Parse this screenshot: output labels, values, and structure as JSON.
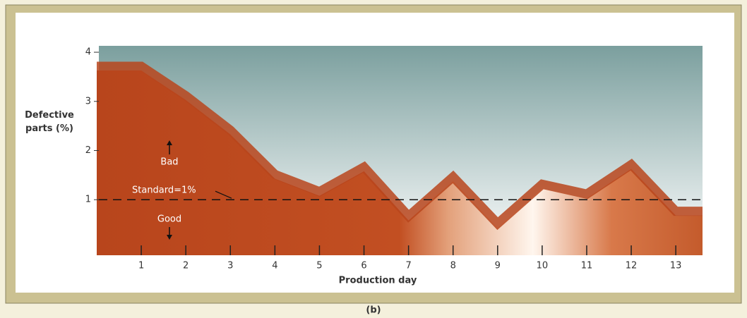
{
  "chart_data": {
    "type": "area",
    "y_label": "Defective parts (%)",
    "x_label": "Production day",
    "caption": "(b)",
    "x": [
      0,
      1,
      2,
      3,
      4,
      5,
      6,
      7,
      8,
      9,
      10,
      11,
      12,
      13,
      13.6
    ],
    "values": [
      3.8,
      3.8,
      3.2,
      2.5,
      1.6,
      1.25,
      1.75,
      0.75,
      1.55,
      0.6,
      1.4,
      1.2,
      1.8,
      0.85,
      0.85
    ],
    "xlim": [
      0,
      13.6
    ],
    "xticks": [
      1,
      2,
      3,
      4,
      5,
      6,
      7,
      8,
      9,
      10,
      11,
      12,
      13
    ],
    "ylim": [
      -0.13,
      4.13
    ],
    "yticks": [
      1,
      2,
      3,
      4
    ],
    "standard": {
      "value": 1,
      "label": "Standard=1%"
    },
    "annotations": [
      "Bad",
      "Good"
    ],
    "color": "#b8451c"
  }
}
